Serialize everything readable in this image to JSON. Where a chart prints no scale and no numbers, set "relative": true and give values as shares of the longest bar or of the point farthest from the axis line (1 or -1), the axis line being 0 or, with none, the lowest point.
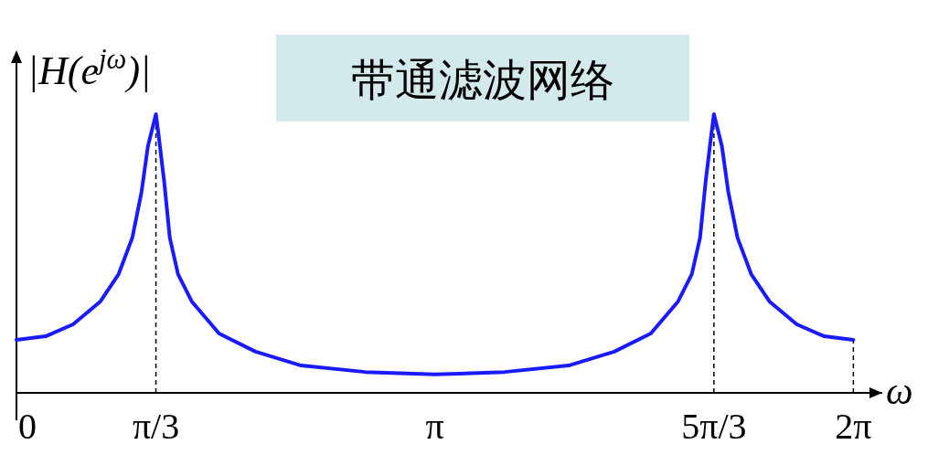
{
  "chart_data": {
    "type": "line",
    "title": "带通滤波网络",
    "xlabel": "ω",
    "ylabel": "|H(e$^{jω}$)|",
    "relative": true,
    "xlim": [
      0,
      6.5
    ],
    "xticks": [
      {
        "value": 0,
        "label": "0"
      },
      {
        "value": 1.047,
        "label": "π/3"
      },
      {
        "value": 3.1416,
        "label": "π"
      },
      {
        "value": 5.236,
        "label": "5π/3"
      },
      {
        "value": 6.283,
        "label": "2π"
      }
    ],
    "x": [
      0,
      0.219,
      0.425,
      0.63,
      0.767,
      0.87,
      0.939,
      0.987,
      1.047,
      1.069,
      1.11,
      1.151,
      1.213,
      1.316,
      1.521,
      1.795,
      2.138,
      2.617,
      3.1416,
      3.666,
      4.145,
      4.488,
      4.762,
      4.967,
      5.07,
      5.132,
      5.173,
      5.214,
      5.236,
      5.296,
      5.344,
      5.413,
      5.516,
      5.653,
      5.858,
      6.064,
      6.283
    ],
    "series": [
      {
        "color": "#1a1aff",
        "values": [
          0.19,
          0.203,
          0.246,
          0.328,
          0.426,
          0.557,
          0.721,
          0.885,
          1,
          0.918,
          0.754,
          0.557,
          0.426,
          0.328,
          0.213,
          0.148,
          0.098,
          0.075,
          0.066,
          0.075,
          0.098,
          0.148,
          0.213,
          0.328,
          0.426,
          0.557,
          0.754,
          0.918,
          1,
          0.885,
          0.721,
          0.557,
          0.426,
          0.328,
          0.246,
          0.203,
          0.19
        ]
      }
    ],
    "line_style": "solid",
    "ref_lines": [
      {
        "axis": "x",
        "value": 1.047,
        "label": null,
        "line_style": "dashed",
        "color": "#000000"
      },
      {
        "axis": "x",
        "value": 5.236,
        "label": null,
        "line_style": "dashed",
        "color": "#000000"
      },
      {
        "axis": "x",
        "value": 6.283,
        "label": null,
        "line_style": "dashed",
        "color": "#000000"
      }
    ]
  }
}
